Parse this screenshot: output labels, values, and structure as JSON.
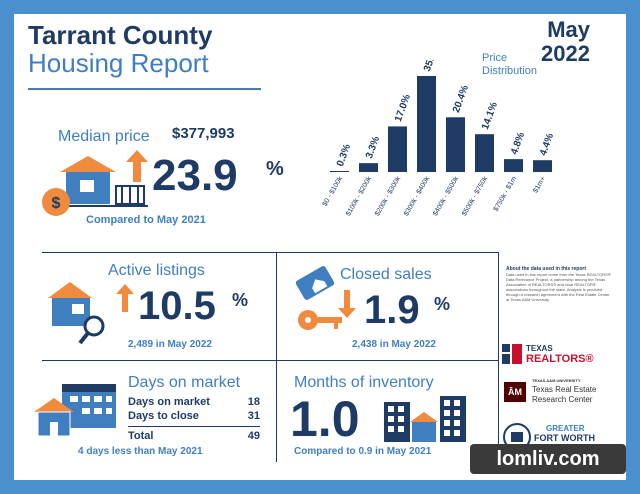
{
  "header": {
    "title_line1": "Tarrant County",
    "title_line2": "Housing Report",
    "month": "May",
    "year": "2022",
    "price_distribution_label_1": "Price",
    "price_distribution_label_2": "Distribution"
  },
  "median": {
    "label": "Median price",
    "value": "$377,993",
    "change": "23.9",
    "percent_sign": "%",
    "compare": "Compared to May 2021"
  },
  "active": {
    "label": "Active listings",
    "change": "10.5",
    "percent_sign": "%",
    "sub": "2,489 in May 2022"
  },
  "closed": {
    "label": "Closed sales",
    "change": "1.9",
    "percent_sign": "%",
    "sub": "2,438 in May 2022"
  },
  "dom": {
    "label": "Days on market",
    "row1_label": "Days on market",
    "row1_value": "18",
    "row2_label": "Days to close",
    "row2_value": "31",
    "total_label": "Total",
    "total_value": "49",
    "sub": "4 days less than May 2021"
  },
  "moi": {
    "label": "Months of inventory",
    "value": "1.0",
    "sub": "Compared to 0.9 in May 2021"
  },
  "about": {
    "heading": "About the data used in this report",
    "body": "Data used in this report come from the Texas REALTORS® Data Relevance Project, a partnership among the Texas Association of REALTORS® and local REALTOR® associations throughout the state. Analysis is provided through a research agreement with the Real Estate Center at Texas A&M University."
  },
  "logos": {
    "texas_realtors_1": "TEXAS",
    "texas_realtors_2": "REALTORS®",
    "tamu_small": "TEXAS A&M UNIVERSITY",
    "tamu_1": "Texas Real Estate",
    "tamu_2": "Research Center",
    "gfw_1": "GREATER",
    "gfw_2": "FORT WORTH",
    "gfw_3": "ASSOCIATION OF REALTORS®"
  },
  "watermark": "lomliv.com",
  "colors": {
    "navy": "#1d3b64",
    "blue": "#3f7fc0",
    "orange": "#f08a3c",
    "frame": "#4a90cf"
  },
  "chart_data": {
    "type": "bar",
    "title": "Price Distribution",
    "categories": [
      "$0 - $100k",
      "$100k - $200k",
      "$200k - $300k",
      "$300k - $400k",
      "$400k - $500k",
      "$500k - $750k",
      "$750k - $1m",
      "$1m+"
    ],
    "values": [
      0.3,
      3.3,
      17.0,
      35.8,
      20.4,
      14.1,
      4.8,
      4.4
    ],
    "value_labels": [
      "0.3%",
      "3.3%",
      "17.0%",
      "35.8%",
      "20.4%",
      "14.1%",
      "4.8%",
      "4.4%"
    ],
    "ylim": [
      0,
      35.8
    ],
    "grid": false,
    "legend": "none"
  }
}
